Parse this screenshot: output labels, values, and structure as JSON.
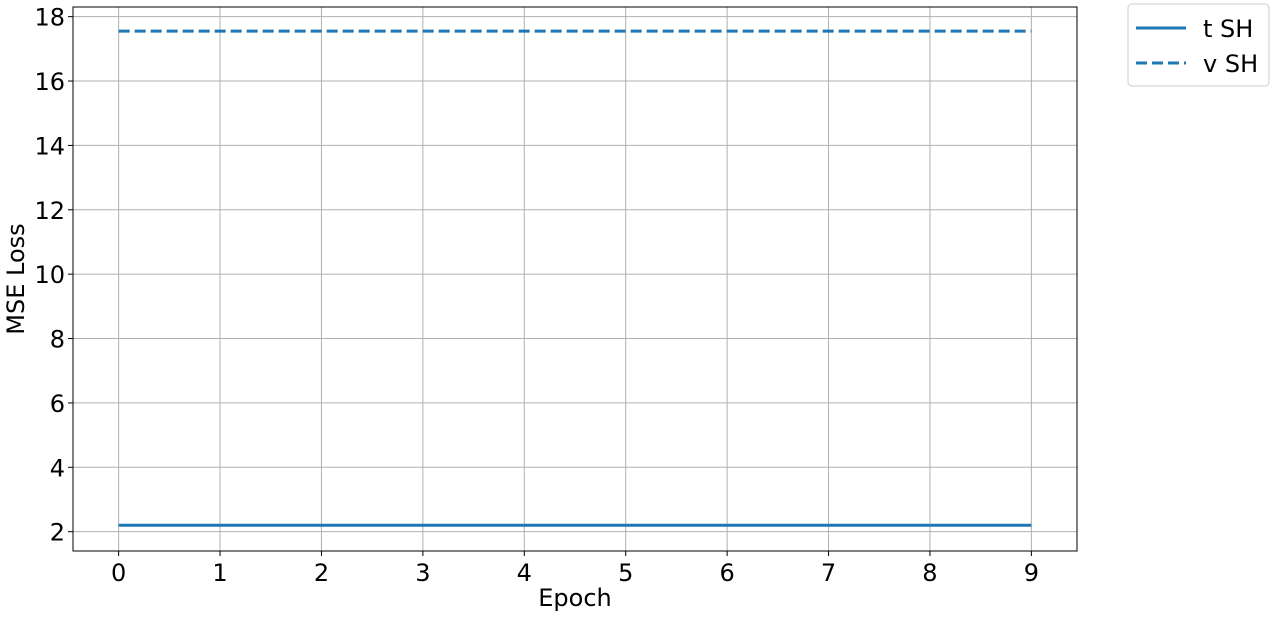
{
  "chart_data": {
    "type": "line",
    "title": "",
    "xlabel": "Epoch",
    "ylabel": "MSE Loss",
    "x": [
      0,
      1,
      2,
      3,
      4,
      5,
      6,
      7,
      8,
      9
    ],
    "xticks": [
      0,
      1,
      2,
      3,
      4,
      5,
      6,
      7,
      8,
      9
    ],
    "yticks": [
      2,
      4,
      6,
      8,
      10,
      12,
      14,
      16,
      18
    ],
    "xlim": [
      -0.45,
      9.45
    ],
    "ylim": [
      1.4,
      18.3
    ],
    "grid": true,
    "legend_position": "outside-top-right",
    "series": [
      {
        "name": "t SH",
        "style": "solid",
        "color": "#1f77b4",
        "values": [
          2.2,
          2.2,
          2.2,
          2.2,
          2.2,
          2.2,
          2.2,
          2.2,
          2.2,
          2.2
        ]
      },
      {
        "name": "v SH",
        "style": "dashed",
        "color": "#1f77b4",
        "values": [
          17.55,
          17.55,
          17.55,
          17.55,
          17.55,
          17.55,
          17.55,
          17.55,
          17.55,
          17.55
        ]
      }
    ]
  }
}
